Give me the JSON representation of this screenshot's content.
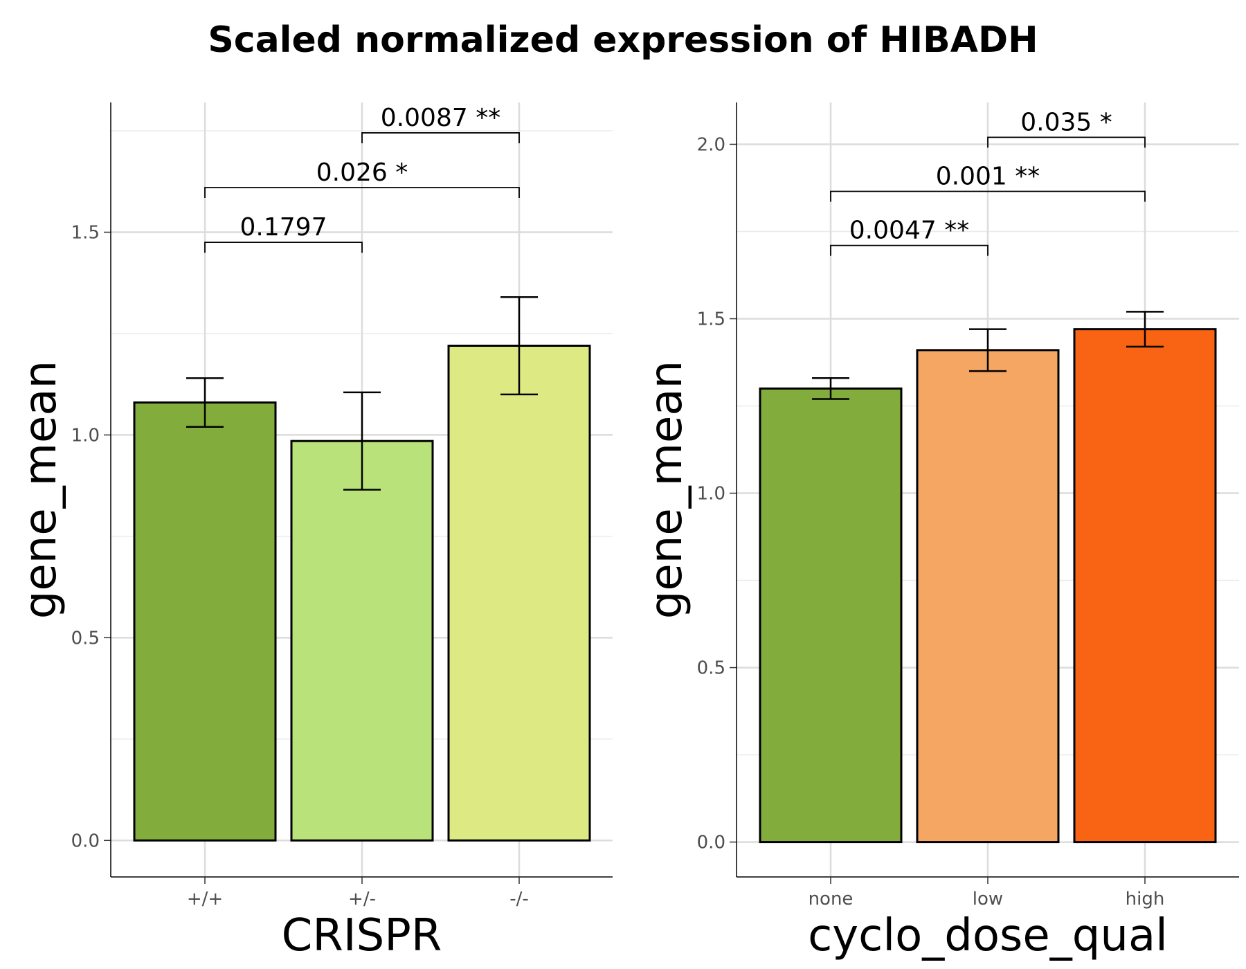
{
  "title": "Scaled normalized expression of HIBADH",
  "chart_data": [
    {
      "type": "bar",
      "title": "",
      "xlabel": "CRISPR",
      "ylabel": "gene_mean",
      "ylim": [
        -0.09,
        1.82
      ],
      "yticks": [
        0.0,
        0.5,
        1.0,
        1.5
      ],
      "ytick_labels": [
        "0.0",
        "0.5",
        "1.0",
        "1.5"
      ],
      "grid": true,
      "categories": [
        "+/+",
        "+/-",
        "-/-"
      ],
      "values": [
        1.08,
        0.985,
        1.22
      ],
      "error_low": [
        1.02,
        0.865,
        1.1
      ],
      "error_high": [
        1.14,
        1.105,
        1.34
      ],
      "colors": [
        "#82ad3c",
        "#b9e27a",
        "#dde982"
      ],
      "comparisons": [
        {
          "from": 0,
          "to": 1,
          "y": 1.475,
          "label": "0.1797"
        },
        {
          "from": 0,
          "to": 2,
          "y": 1.61,
          "label": "0.026 *"
        },
        {
          "from": 1,
          "to": 2,
          "y": 1.745,
          "label": "0.0087 **"
        }
      ]
    },
    {
      "type": "bar",
      "title": "",
      "xlabel": "cyclo_dose_qual",
      "ylabel": "gene_mean",
      "ylim": [
        -0.1,
        2.12
      ],
      "yticks": [
        0.0,
        0.5,
        1.0,
        1.5,
        2.0
      ],
      "ytick_labels": [
        "0.0",
        "0.5",
        "1.0",
        "1.5",
        "2.0"
      ],
      "grid": true,
      "categories": [
        "none",
        "low",
        "high"
      ],
      "values": [
        1.3,
        1.41,
        1.47
      ],
      "error_low": [
        1.27,
        1.35,
        1.42
      ],
      "error_high": [
        1.33,
        1.47,
        1.52
      ],
      "colors": [
        "#82ad3c",
        "#f5a663",
        "#f86414"
      ],
      "comparisons": [
        {
          "from": 0,
          "to": 1,
          "y": 1.71,
          "label": "0.0047 **"
        },
        {
          "from": 0,
          "to": 2,
          "y": 1.865,
          "label": "0.001 **"
        },
        {
          "from": 1,
          "to": 2,
          "y": 2.02,
          "label": "0.035 *"
        }
      ]
    }
  ]
}
